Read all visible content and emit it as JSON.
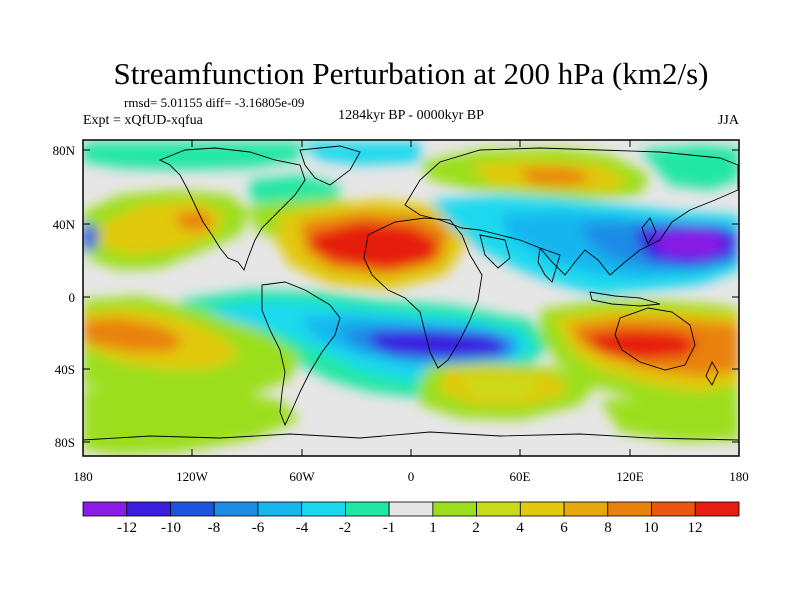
{
  "title": "Streamfunction Perturbation at 200 hPa (km2/s)",
  "stats": "rmsd= 5.01155 diff= -3.16805e-09",
  "experiment": "Expt = xQfUD-xqfua",
  "period": "1284kyr BP - 0000kyr BP",
  "season": "JJA",
  "map": {
    "lat_labels": [
      "80N",
      "40N",
      "0",
      "40S",
      "80S"
    ],
    "lon_labels": [
      "180",
      "120W",
      "60W",
      "0",
      "60E",
      "120E",
      "180"
    ]
  },
  "colorbar": {
    "colors": [
      "#8a1ce6",
      "#3a1fe0",
      "#1f52e0",
      "#1a8be6",
      "#19b5ef",
      "#1ad9ee",
      "#20e7a4",
      "#e6e6e6",
      "#9bdf1c",
      "#c7dc16",
      "#e2c90c",
      "#e6a80c",
      "#e9820d",
      "#ea560f",
      "#e61e0f"
    ],
    "labels": [
      "-12",
      "-10",
      "-8",
      "-6",
      "-4",
      "-2",
      "-1",
      "1",
      "2",
      "4",
      "6",
      "8",
      "10",
      "12"
    ]
  },
  "palette": {
    "gray": "#e6e6e6",
    "green": "#9bdf1c",
    "yellow": "#e2c90c",
    "orange": "#e9820d",
    "red": "#e61e0f",
    "lightgreen": "#c7dc16",
    "teal": "#20e7a4",
    "cyan": "#1ad9ee",
    "lightblue": "#19b5ef",
    "blue": "#1a8be6",
    "darkblue": "#1f52e0",
    "indigo": "#3a1fe0",
    "purple": "#8a1ce6"
  }
}
